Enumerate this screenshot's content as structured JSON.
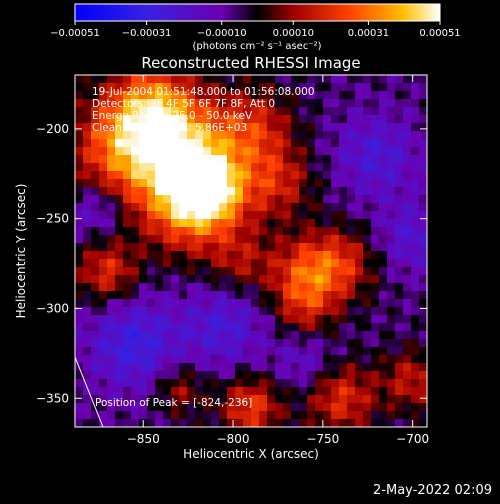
{
  "chart_data": {
    "type": "heatmap",
    "title": "Reconstructed RHESSI Image",
    "xlabel": "Heliocentric X (arcsec)",
    "ylabel": "Heliocentric Y (arcsec)",
    "xlim": [
      -888,
      -692
    ],
    "ylim": [
      -366,
      -170
    ],
    "x_ticks": [
      -850,
      -800,
      -750,
      -700
    ],
    "x_tick_labels": [
      "−850",
      "−800",
      "−750",
      "−700"
    ],
    "y_ticks": [
      -200,
      -250,
      -300,
      -350
    ],
    "y_tick_labels": [
      "−200",
      "−250",
      "−300",
      "−350"
    ],
    "colorbar": {
      "min": -0.00051,
      "max": 0.00051,
      "ticks": [
        -0.00051,
        -0.00031,
        -0.0001,
        0.0001,
        0.00031,
        0.00051
      ],
      "tick_labels": [
        "−0.00051",
        "−0.00031",
        "−0.00010",
        "0.00010",
        "0.00031",
        "0.00051"
      ],
      "units_label": "(photons cm⁻² s⁻¹ asec⁻²)"
    },
    "annotations": [
      "19-Jul-2004 01:51:48.000 to 01:56:08.000",
      "Detectors: 3F 4F 5F 6F 7F 8F, Att 0",
      "Energy Range: 25.0 - 50.0 keV",
      "Clean     Total counts: 5.86E+03"
    ],
    "peak_label": "Position of Peak = [-824,-236]",
    "peak": {
      "x": -824,
      "y": -236
    },
    "sources": [
      {
        "x": -822,
        "y": -238,
        "amp": 1.0,
        "width": 20
      },
      {
        "x": -815,
        "y": -232,
        "amp": 0.7,
        "width": 12
      },
      {
        "x": -860,
        "y": -210,
        "amp": 0.75,
        "width": 20
      },
      {
        "x": -845,
        "y": -185,
        "amp": 0.55,
        "width": 16
      },
      {
        "x": -830,
        "y": -205,
        "amp": 0.55,
        "width": 18
      },
      {
        "x": -790,
        "y": -200,
        "amp": 0.5,
        "width": 16
      },
      {
        "x": -775,
        "y": -230,
        "amp": 0.4,
        "width": 14
      },
      {
        "x": -760,
        "y": -280,
        "amp": 0.5,
        "width": 14
      },
      {
        "x": -740,
        "y": -275,
        "amp": 0.45,
        "width": 14
      },
      {
        "x": -760,
        "y": -300,
        "amp": 0.35,
        "width": 12
      },
      {
        "x": -795,
        "y": -275,
        "amp": 0.3,
        "width": 12
      },
      {
        "x": -740,
        "y": -350,
        "amp": 0.5,
        "width": 14
      },
      {
        "x": -790,
        "y": -355,
        "amp": 0.55,
        "width": 12
      },
      {
        "x": -830,
        "y": -345,
        "amp": 0.35,
        "width": 10
      },
      {
        "x": -870,
        "y": -280,
        "amp": 0.5,
        "width": 12
      },
      {
        "x": -700,
        "y": -340,
        "amp": 0.4,
        "width": 12
      },
      {
        "x": -855,
        "y": -320,
        "amp": -0.45,
        "width": 18
      },
      {
        "x": -805,
        "y": -310,
        "amp": -0.35,
        "width": 16
      },
      {
        "x": -720,
        "y": -215,
        "amp": -0.35,
        "width": 16
      },
      {
        "x": -700,
        "y": -260,
        "amp": -0.3,
        "width": 14
      },
      {
        "x": -875,
        "y": -245,
        "amp": -0.3,
        "width": 10
      },
      {
        "x": -760,
        "y": -330,
        "amp": -0.25,
        "width": 12
      }
    ]
  },
  "footer_timestamp": "2-May-2022 02:09",
  "colors": {
    "background": "#000000",
    "text": "#ffffff"
  }
}
